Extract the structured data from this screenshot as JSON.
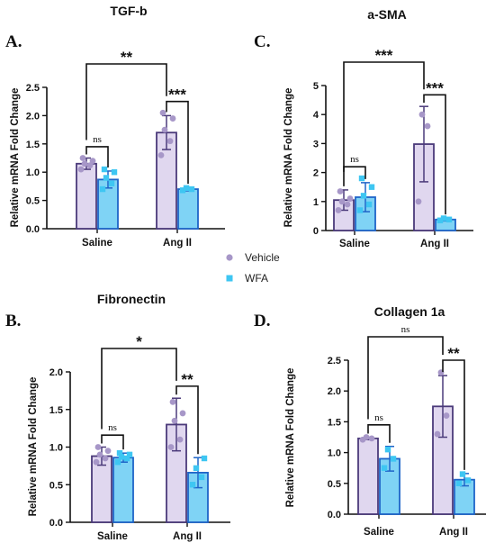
{
  "legend": {
    "entries": [
      {
        "name": "Vehicle",
        "color": "#a797c8",
        "marker": "circle"
      },
      {
        "name": "WFA",
        "color": "#3ec6f2",
        "marker": "square"
      }
    ]
  },
  "colors": {
    "vehicle_fill": "#e0d7ef",
    "vehicle_edge": "#4b3a7a",
    "vehicle_point": "#a797c8",
    "wfa_fill": "#7fd3f5",
    "wfa_edge": "#1e64c8",
    "wfa_point": "#3ec6f2"
  },
  "chart_data": [
    {
      "panel": "A.",
      "type": "bar",
      "title": "TGF-b",
      "ylabel": "Relative mRNA Fold Change",
      "categories": [
        "Saline",
        "Ang II"
      ],
      "ylim": [
        0,
        2.5
      ],
      "yticks": [
        "0.0",
        "0.5",
        "1.0",
        "1.5",
        "2.0",
        "2.5"
      ],
      "series": [
        {
          "name": "Vehicle",
          "values": [
            1.15,
            1.7
          ],
          "errors": [
            0.1,
            0.3
          ],
          "points": [
            [
              1.05,
              1.12,
              1.15,
              1.2,
              1.25
            ],
            [
              1.3,
              1.55,
              1.75,
              1.95,
              2.05
            ]
          ]
        },
        {
          "name": "WFA",
          "values": [
            0.87,
            0.7
          ],
          "errors": [
            0.15,
            0.03
          ],
          "points": [
            [
              0.7,
              0.8,
              0.9,
              1.0,
              1.05
            ],
            [
              0.68,
              0.7,
              0.72
            ]
          ]
        }
      ],
      "comparisons": [
        {
          "label": "ns",
          "from": [
            0,
            0
          ],
          "to": [
            0,
            1
          ]
        },
        {
          "label": "***",
          "from": [
            1,
            0
          ],
          "to": [
            1,
            1
          ]
        },
        {
          "label": "**",
          "from": [
            0,
            0
          ],
          "to": [
            1,
            0
          ]
        }
      ]
    },
    {
      "panel": "C.",
      "type": "bar",
      "title": "a-SMA",
      "ylabel": "Relative mRNA Fold Change",
      "categories": [
        "Saline",
        "Ang II"
      ],
      "ylim": [
        0,
        5
      ],
      "yticks": [
        "0",
        "1",
        "2",
        "3",
        "4",
        "5"
      ],
      "series": [
        {
          "name": "Vehicle",
          "values": [
            1.05,
            2.98
          ],
          "errors": [
            0.35,
            1.3
          ],
          "points": [
            [
              0.7,
              0.9,
              1.0,
              1.1,
              1.35
            ],
            [
              1.0,
              3.6,
              4.0
            ]
          ]
        },
        {
          "name": "WFA",
          "values": [
            1.15,
            0.38
          ],
          "errors": [
            0.5,
            0.05
          ],
          "points": [
            [
              0.7,
              0.9,
              1.2,
              1.5,
              1.8
            ],
            [
              0.35,
              0.38,
              0.42
            ]
          ]
        }
      ],
      "comparisons": [
        {
          "label": "ns",
          "from": [
            0,
            0
          ],
          "to": [
            0,
            1
          ]
        },
        {
          "label": "***",
          "from": [
            1,
            0
          ],
          "to": [
            1,
            1
          ]
        },
        {
          "label": "***",
          "from": [
            0,
            0
          ],
          "to": [
            1,
            0
          ]
        }
      ]
    },
    {
      "panel": "B.",
      "type": "bar",
      "title": "Fibronectin",
      "ylabel": "Relative mRNA Fold Change",
      "categories": [
        "Saline",
        "Ang II"
      ],
      "ylim": [
        0,
        2.0
      ],
      "yticks": [
        "0.0",
        "0.5",
        "1.0",
        "1.5",
        "2.0"
      ],
      "series": [
        {
          "name": "Vehicle",
          "values": [
            0.88,
            1.3
          ],
          "errors": [
            0.12,
            0.35
          ],
          "points": [
            [
              0.8,
              0.85,
              0.9,
              0.95,
              1.0
            ],
            [
              1.0,
              1.1,
              1.35,
              1.45,
              1.6
            ]
          ]
        },
        {
          "name": "WFA",
          "values": [
            0.86,
            0.66
          ],
          "errors": [
            0.06,
            0.2
          ],
          "points": [
            [
              0.8,
              0.85,
              0.87,
              0.9,
              0.92
            ],
            [
              0.5,
              0.6,
              0.72,
              0.85
            ]
          ]
        }
      ],
      "comparisons": [
        {
          "label": "ns",
          "from": [
            0,
            0
          ],
          "to": [
            0,
            1
          ]
        },
        {
          "label": "**",
          "from": [
            1,
            0
          ],
          "to": [
            1,
            1
          ]
        },
        {
          "label": "*",
          "from": [
            0,
            0
          ],
          "to": [
            1,
            0
          ]
        }
      ]
    },
    {
      "panel": "D.",
      "type": "bar",
      "title": "Collagen 1a",
      "ylabel": "Relative mRNA Fold Change",
      "categories": [
        "Saline",
        "Ang II"
      ],
      "ylim": [
        0,
        2.5
      ],
      "yticks": [
        "0.0",
        "0.5",
        "1.0",
        "1.5",
        "2.0",
        "2.5"
      ],
      "series": [
        {
          "name": "Vehicle",
          "values": [
            1.23,
            1.75
          ],
          "errors": [
            0.02,
            0.5
          ],
          "points": [
            [
              1.21,
              1.23,
              1.25
            ],
            [
              1.3,
              1.6,
              2.3
            ]
          ]
        },
        {
          "name": "WFA",
          "values": [
            0.9,
            0.56
          ],
          "errors": [
            0.2,
            0.1
          ],
          "points": [
            [
              0.75,
              0.9,
              1.05
            ],
            [
              0.5,
              0.55,
              0.65
            ]
          ]
        }
      ],
      "comparisons": [
        {
          "label": "ns",
          "from": [
            0,
            0
          ],
          "to": [
            0,
            1
          ]
        },
        {
          "label": "**",
          "from": [
            1,
            0
          ],
          "to": [
            1,
            1
          ]
        },
        {
          "label": "ns",
          "from": [
            0,
            0
          ],
          "to": [
            1,
            0
          ]
        }
      ]
    }
  ]
}
